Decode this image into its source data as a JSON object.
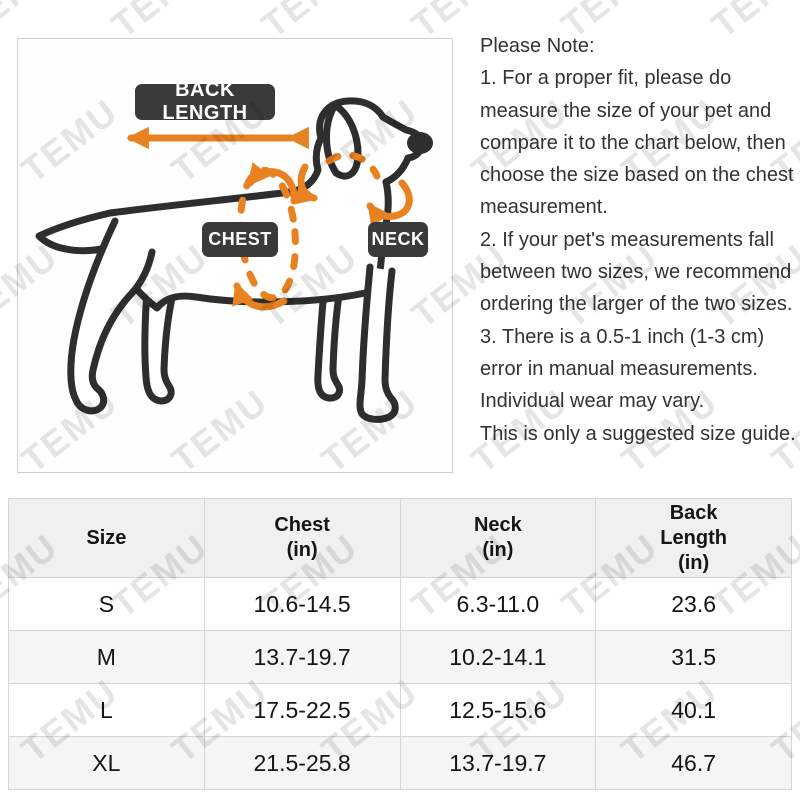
{
  "watermark": {
    "text": "TEMU"
  },
  "colors": {
    "accent_orange": "#e8811f",
    "label_bg": "#3a3a3a",
    "line_dark": "#2e2e2e",
    "table_border": "#d6d6d6",
    "header_bg": "#f0f0f0",
    "alt_row_bg": "#f5f5f5"
  },
  "diagram": {
    "labels": {
      "back_length": "BACK LENGTH",
      "chest": "CHEST",
      "neck": "NECK"
    }
  },
  "note": {
    "title": "Please Note:",
    "lines": [
      "1. For a proper fit, please do",
      "measure the size of your pet and",
      "compare it to the chart below, then",
      "choose the size based on the chest",
      "measurement.",
      "2. If your pet's measurements fall",
      "between two sizes, we recommend",
      "ordering the larger of the two sizes.",
      "3. There is a 0.5-1 inch (1-3 cm)",
      "error in manual measurements.",
      "Individual wear may vary.",
      "This is only a suggested size guide."
    ]
  },
  "table": {
    "headers": [
      "Size",
      "Chest\n(in)",
      "Neck\n(in)",
      "Back\nLength\n(in)"
    ],
    "rows": [
      {
        "size": "S",
        "chest": "10.6-14.5",
        "neck": "6.3-11.0",
        "back_length": "23.6"
      },
      {
        "size": "M",
        "chest": "13.7-19.7",
        "neck": "10.2-14.1",
        "back_length": "31.5"
      },
      {
        "size": "L",
        "chest": "17.5-22.5",
        "neck": "12.5-15.6",
        "back_length": "40.1"
      },
      {
        "size": "XL",
        "chest": "21.5-25.8",
        "neck": "13.7-19.7",
        "back_length": "46.7"
      }
    ]
  }
}
